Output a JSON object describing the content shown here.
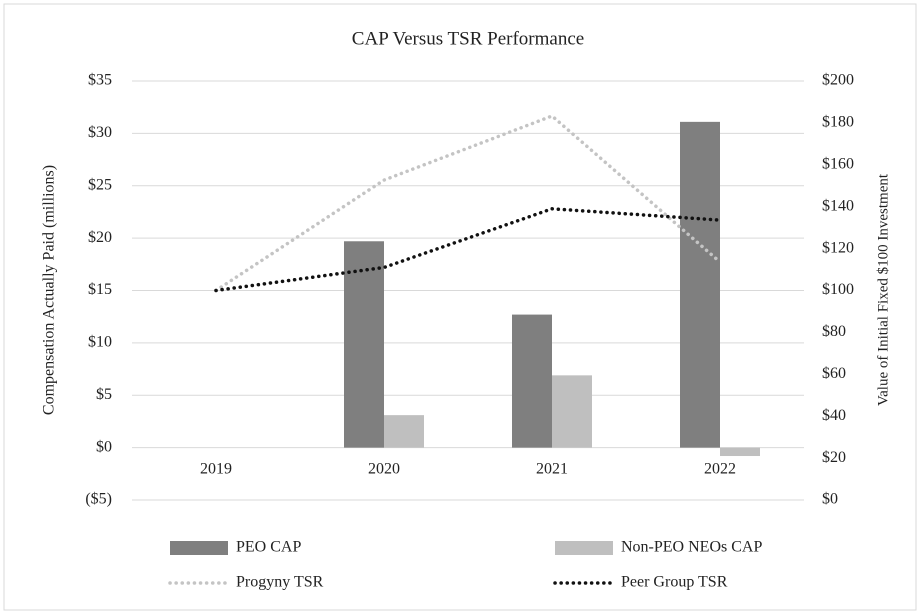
{
  "chart_data": {
    "type": "bar",
    "title": "CAP Versus TSR Performance",
    "y_label": "Compensation Actually Paid (millions)",
    "y2_label": "Value of Initial  Fixed $100 Investment",
    "categories": [
      "2019",
      "2020",
      "2021",
      "2022"
    ],
    "ylim": [
      -5,
      35
    ],
    "yticks": [
      {
        "value": -5,
        "label": "($5)"
      },
      {
        "value": 0,
        "label": "$0"
      },
      {
        "value": 5,
        "label": "$5"
      },
      {
        "value": 10,
        "label": "$10"
      },
      {
        "value": 15,
        "label": "$15"
      },
      {
        "value": 20,
        "label": "$20"
      },
      {
        "value": 25,
        "label": "$25"
      },
      {
        "value": 30,
        "label": "$30"
      },
      {
        "value": 35,
        "label": "$35"
      }
    ],
    "y2lim": [
      0,
      200
    ],
    "y2ticks": [
      {
        "value": 0,
        "label": "$0"
      },
      {
        "value": 20,
        "label": "$20"
      },
      {
        "value": 40,
        "label": "$40"
      },
      {
        "value": 60,
        "label": "$60"
      },
      {
        "value": 80,
        "label": "$80"
      },
      {
        "value": 100,
        "label": "$100"
      },
      {
        "value": 120,
        "label": "$120"
      },
      {
        "value": 140,
        "label": "$140"
      },
      {
        "value": 160,
        "label": "$160"
      },
      {
        "value": 180,
        "label": "$180"
      },
      {
        "value": 200,
        "label": "$200"
      }
    ],
    "grid": true,
    "legend": "bottom",
    "series": [
      {
        "name": "PEO CAP",
        "type": "bar",
        "color": "#7f7f7f",
        "values": [
          null,
          19.7,
          12.7,
          31.1
        ]
      },
      {
        "name": "Non-PEO NEOs CAP",
        "type": "bar",
        "color": "#bfbfbf",
        "values": [
          null,
          3.1,
          6.9,
          -0.8
        ]
      },
      {
        "name": "Progyny TSR",
        "type": "line",
        "axis": "y2",
        "color": "#c4c4c4",
        "values": [
          100,
          152.7,
          183.3,
          113.6
        ]
      },
      {
        "name": "Peer Group TSR",
        "type": "line",
        "axis": "y2",
        "color": "#111111",
        "values": [
          100,
          111,
          139,
          133.6
        ]
      }
    ]
  }
}
